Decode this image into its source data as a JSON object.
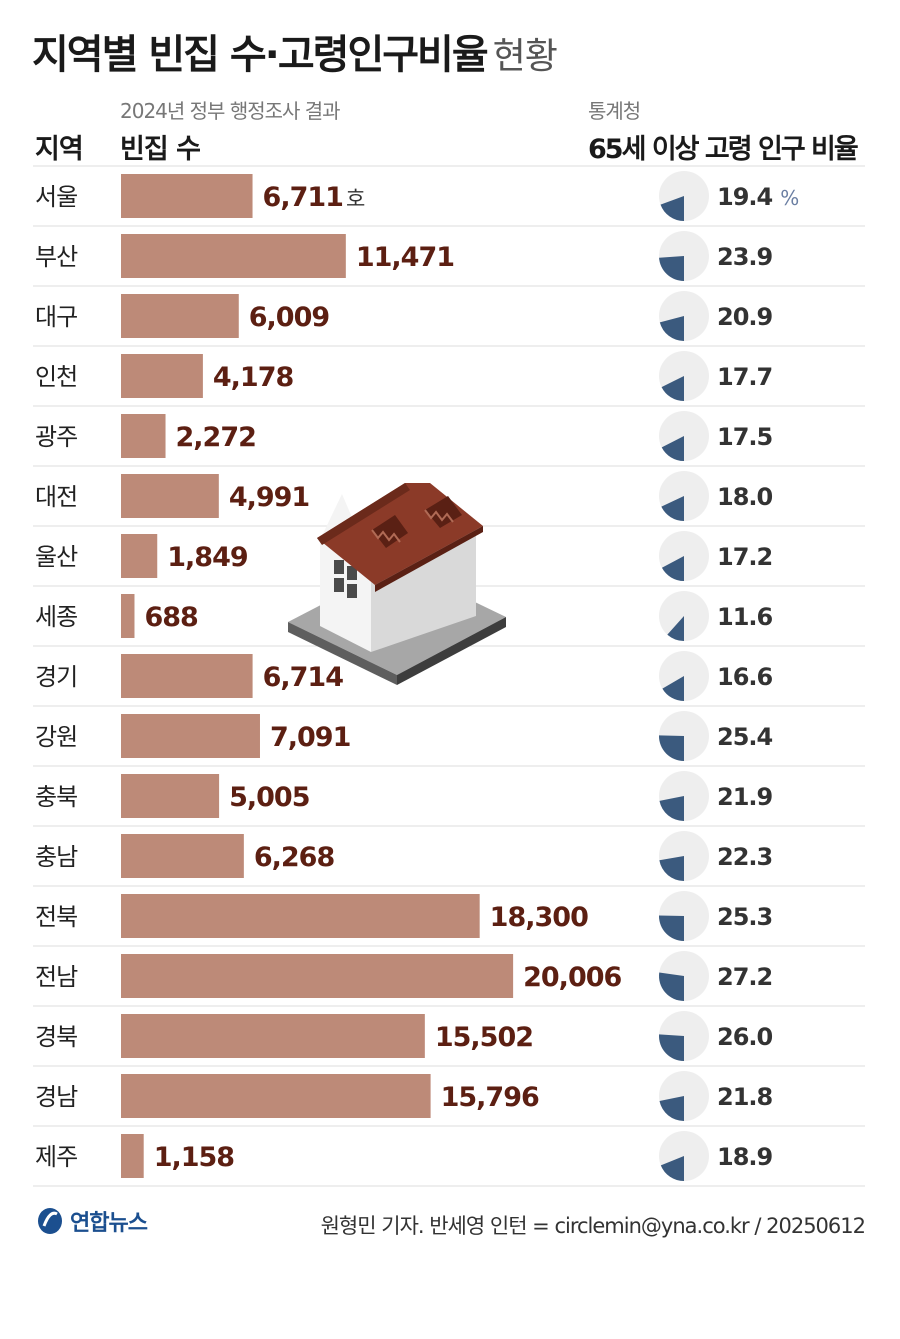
{
  "title": {
    "main": "지역별 빈집 수·고령인구비율",
    "sub": "현황"
  },
  "headers": {
    "region": "지역",
    "bar_source": "2024년 정부 행정조사 결과",
    "bar_title": "빈집 수",
    "pie_source": "통계청",
    "pie_title": "65세 이상 고령 인구 비율"
  },
  "units": {
    "bar": "호",
    "pie": "%"
  },
  "colors": {
    "bar": "#bd8a78",
    "bar_value": "#5c1f12",
    "pie_bg": "#eeeeee",
    "pie_fill": "#3b5a7e",
    "pie_value": "#333333",
    "row_line": "#dcdcdc",
    "roof": "#8b3a28",
    "wall": "#f2f2f2"
  },
  "chart_data": [
    {
      "type": "bar",
      "title": "빈집 수",
      "categories": [
        "서울",
        "부산",
        "대구",
        "인천",
        "광주",
        "대전",
        "울산",
        "세종",
        "경기",
        "강원",
        "충북",
        "충남",
        "전북",
        "전남",
        "경북",
        "경남",
        "제주"
      ],
      "values": [
        6711,
        11471,
        6009,
        4178,
        2272,
        4991,
        1849,
        688,
        6714,
        7091,
        5005,
        6268,
        18300,
        20006,
        15502,
        15796,
        1158
      ],
      "labels": [
        "6,711",
        "11,471",
        "6,009",
        "4,178",
        "2,272",
        "4,991",
        "1,849",
        "688",
        "6,714",
        "7,091",
        "5,005",
        "6,268",
        "18,300",
        "20,006",
        "15,502",
        "15,796",
        "1,158"
      ],
      "unit": "호"
    },
    {
      "type": "pie",
      "title": "65세 이상 고령 인구 비율",
      "categories": [
        "서울",
        "부산",
        "대구",
        "인천",
        "광주",
        "대전",
        "울산",
        "세종",
        "경기",
        "강원",
        "충북",
        "충남",
        "전북",
        "전남",
        "경북",
        "경남",
        "제주"
      ],
      "values": [
        19.4,
        23.9,
        20.9,
        17.7,
        17.5,
        18.0,
        17.2,
        11.6,
        16.6,
        25.4,
        21.9,
        22.3,
        25.3,
        27.2,
        26.0,
        21.8,
        18.9
      ],
      "labels": [
        "19.4",
        "23.9",
        "20.9",
        "17.7",
        "17.5",
        "18.0",
        "17.2",
        "11.6",
        "16.6",
        "25.4",
        "21.9",
        "22.3",
        "25.3",
        "27.2",
        "26.0",
        "21.8",
        "18.9"
      ],
      "unit": "%"
    }
  ],
  "illustration": {
    "icon": "house-icon"
  },
  "footer": {
    "logo": "연합뉴스",
    "credit": "원형민 기자. 반세영 인턴 = circlemin@yna.co.kr / 20250612"
  }
}
